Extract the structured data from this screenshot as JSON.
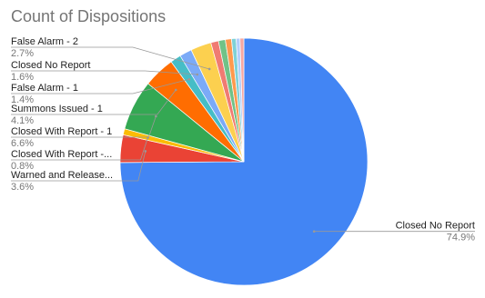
{
  "chart_data": {
    "type": "pie",
    "title": "Count of Dispositions",
    "categories": [
      "Closed No Report",
      "Warned and Release...",
      "Closed With Report -...",
      "Closed With Report - 1",
      "Summons Issued - 1",
      "False Alarm - 1",
      "Closed No Report",
      "False Alarm - 2",
      null,
      null,
      null,
      null,
      null,
      null
    ],
    "values": [
      74.9,
      3.6,
      0.8,
      6.6,
      4.1,
      1.4,
      1.6,
      2.7,
      1.0,
      0.9,
      0.8,
      0.6,
      0.5,
      0.5
    ],
    "value_labels": [
      "74.9%",
      "3.6%",
      "0.8%",
      "6.6%",
      "4.1%",
      "1.4%",
      "1.6%",
      "2.7%",
      null,
      null,
      null,
      null,
      null,
      null
    ],
    "colors": [
      "#4285f4",
      "#ea4335",
      "#fbbc04",
      "#34a853",
      "#ff6d01",
      "#46bdc6",
      "#7baaf7",
      "#fcd04f",
      "#f07b72",
      "#71c287",
      "#ff994d",
      "#7ed1d7",
      "#b3cefb",
      "#f7a7a1"
    ]
  }
}
